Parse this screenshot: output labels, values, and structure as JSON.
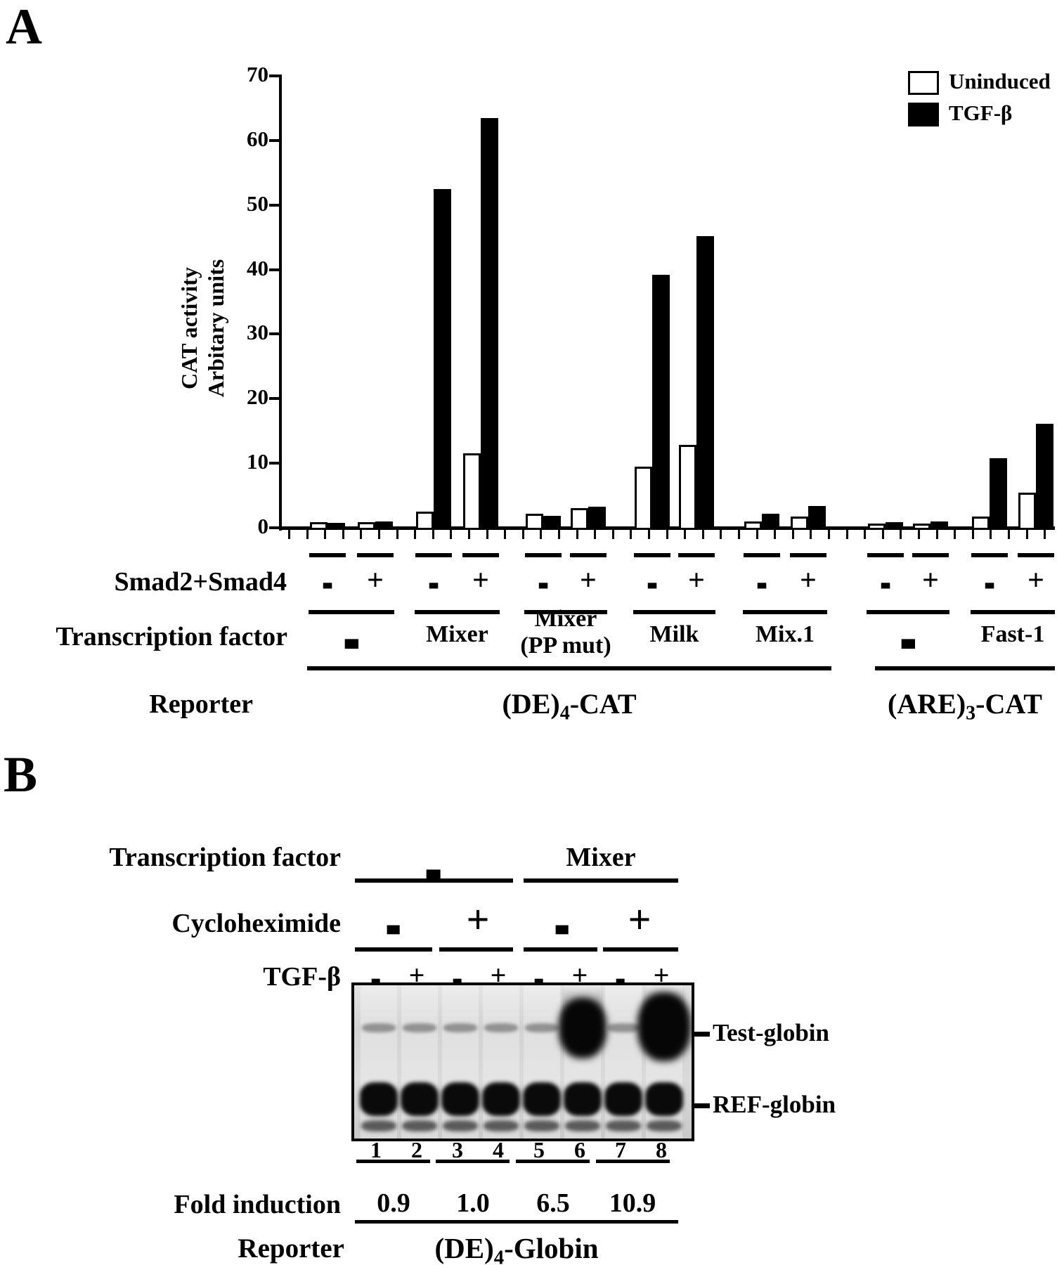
{
  "figure": {
    "panel_a_letter": "A",
    "panel_b_letter": "B"
  },
  "colors": {
    "ink": "#000000",
    "uninduced_fill": "#ffffff",
    "tgfb_fill": "#000000",
    "gel_background": "#d6d6d6"
  },
  "panel_a": {
    "legend": {
      "uninduced": "Uninduced",
      "tgfb": "TGF-β"
    },
    "y_axis": {
      "line1": "CAT activity",
      "line2": "Arbitary units",
      "ticks": [
        "0",
        "10",
        "20",
        "30",
        "40",
        "50",
        "60",
        "70"
      ]
    },
    "row_labels": {
      "smad": "Smad2+Smad4",
      "tf": "Transcription factor",
      "reporter": "Reporter"
    },
    "groups": [
      {
        "tf_line1": "-",
        "tf_line2": "",
        "pairs": [
          {
            "smad": "-",
            "uninduced": 0.9,
            "tgfb": 0.8
          },
          {
            "smad": "+",
            "uninduced": 0.9,
            "tgfb": 1.0
          }
        ]
      },
      {
        "tf_line1": "Mixer",
        "tf_line2": "",
        "pairs": [
          {
            "smad": "-",
            "uninduced": 2.5,
            "tgfb": 52.5
          },
          {
            "smad": "+",
            "uninduced": 11.5,
            "tgfb": 63.5
          }
        ]
      },
      {
        "tf_line1": "Mixer",
        "tf_line2": "(PP mut)",
        "pairs": [
          {
            "smad": "-",
            "uninduced": 2.2,
            "tgfb": 1.9
          },
          {
            "smad": "+",
            "uninduced": 3.0,
            "tgfb": 3.3
          }
        ]
      },
      {
        "tf_line1": "Milk",
        "tf_line2": "",
        "pairs": [
          {
            "smad": "-",
            "uninduced": 9.5,
            "tgfb": 39.2
          },
          {
            "smad": "+",
            "uninduced": 12.8,
            "tgfb": 45.2
          }
        ]
      },
      {
        "tf_line1": "Mix.1",
        "tf_line2": "",
        "pairs": [
          {
            "smad": "-",
            "uninduced": 1.0,
            "tgfb": 2.2
          },
          {
            "smad": "+",
            "uninduced": 1.7,
            "tgfb": 3.4
          }
        ]
      },
      {
        "tf_line1": "-",
        "tf_line2": "",
        "pairs": [
          {
            "smad": "-",
            "uninduced": 0.6,
            "tgfb": 0.9
          },
          {
            "smad": "+",
            "uninduced": 0.6,
            "tgfb": 1.0
          }
        ]
      },
      {
        "tf_line1": "Fast-1",
        "tf_line2": "",
        "pairs": [
          {
            "smad": "-",
            "uninduced": 1.7,
            "tgfb": 10.8
          },
          {
            "smad": "+",
            "uninduced": 5.4,
            "tgfb": 16.1
          }
        ]
      }
    ],
    "reporters": [
      {
        "pre": "(DE)",
        "sub": "4",
        "post": "-CAT"
      },
      {
        "pre": "(ARE)",
        "sub": "3",
        "post": "-CAT"
      }
    ]
  },
  "panel_b": {
    "rows": {
      "tf": {
        "label": "Transcription factor",
        "values": [
          "-",
          "Mixer"
        ]
      },
      "cycloheximide": {
        "label": "Cycloheximide",
        "values": [
          "-",
          "+",
          "-",
          "+"
        ]
      },
      "tgfb": {
        "label": "TGF-β",
        "values": [
          "-",
          "+",
          "-",
          "+",
          "-",
          "+",
          "-",
          "+"
        ]
      }
    },
    "gel": {
      "lane_numbers": [
        "1",
        "2",
        "3",
        "4",
        "5",
        "6",
        "7",
        "8"
      ],
      "test_band_label": "Test-globin",
      "ref_band_label": "REF-globin",
      "test_band_levels": [
        "faint",
        "faint",
        "faint",
        "faint",
        "faint",
        "strong",
        "faint",
        "strong"
      ],
      "ref_band_levels": [
        "strong",
        "strong",
        "strong",
        "strong",
        "strong",
        "strong",
        "strong",
        "strong"
      ]
    },
    "fold_induction": {
      "label": "Fold induction",
      "values": [
        "0.9",
        "1.0",
        "6.5",
        "10.9"
      ]
    },
    "reporter": {
      "label": "Reporter",
      "value_pre": "(DE)",
      "value_sub": "4",
      "value_post": "-Globin"
    }
  },
  "chart_data": [
    {
      "type": "bar",
      "title": "CAT activity, Arbitary units",
      "ylabel": "CAT activity Arbitary units",
      "ylim": [
        0,
        70
      ],
      "y_ticks": [
        0,
        10,
        20,
        30,
        40,
        50,
        60,
        70
      ],
      "legend_position": "top-right",
      "categories": [
        "TF:- Smad:-",
        "TF:- Smad:+",
        "Mixer Smad:-",
        "Mixer Smad:+",
        "Mixer(PP mut) Smad:-",
        "Mixer(PP mut) Smad:+",
        "Milk Smad:-",
        "Milk Smad:+",
        "Mix.1 Smad:-",
        "Mix.1 Smad:+",
        "TF:- (ARE) Smad:-",
        "TF:- (ARE) Smad:+",
        "Fast-1 Smad:-",
        "Fast-1 Smad:+"
      ],
      "series": [
        {
          "name": "Uninduced",
          "values": [
            0.9,
            0.9,
            2.5,
            11.5,
            2.2,
            3.0,
            9.5,
            12.8,
            1.0,
            1.7,
            0.6,
            0.6,
            1.7,
            5.4
          ]
        },
        {
          "name": "TGF-β",
          "values": [
            0.8,
            1.0,
            52.5,
            63.5,
            1.9,
            3.3,
            39.2,
            45.2,
            2.2,
            3.4,
            0.9,
            1.0,
            10.8,
            16.1
          ]
        }
      ],
      "x_annotation_rows": {
        "smad2_smad4": [
          "-",
          "+",
          "-",
          "+",
          "-",
          "+",
          "-",
          "+",
          "-",
          "+",
          "-",
          "+",
          "-",
          "+"
        ],
        "transcription_factor": [
          "-",
          "Mixer",
          "Mixer (PP mut)",
          "Milk",
          "Mix.1",
          "-",
          "Fast-1"
        ],
        "reporter": [
          "(DE)4-CAT",
          "(ARE)3-CAT"
        ]
      },
      "grid": false
    },
    {
      "type": "table",
      "title": "Fold induction",
      "columns": [
        "lanes 1-2",
        "lanes 3-4",
        "lanes 5-6",
        "lanes 7-8"
      ],
      "values": [
        0.9,
        1.0,
        6.5,
        10.9
      ],
      "reporter": "(DE)4-Globin"
    }
  ]
}
